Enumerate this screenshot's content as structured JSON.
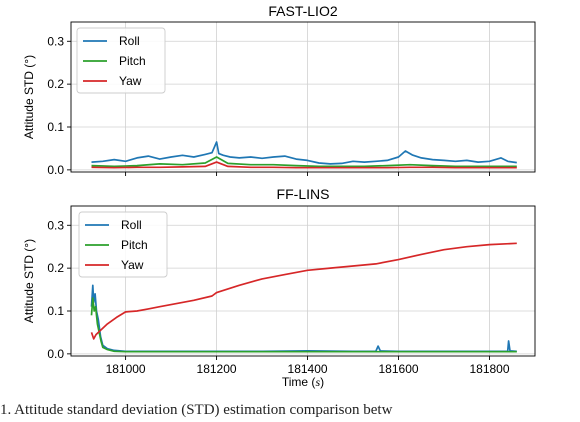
{
  "chart_data": [
    {
      "type": "line",
      "title": "FAST-LIO2",
      "ylabel": "Attitude STD (°)",
      "xlabel": "",
      "xlim": [
        180880,
        181900
      ],
      "ylim": [
        -0.005,
        0.345
      ],
      "yticks": [
        "0.0",
        "0.1",
        "0.2",
        "0.3"
      ],
      "xticks": [],
      "grid": true,
      "legend": "top-left",
      "series": [
        {
          "name": "Roll",
          "color": "#1f77b4",
          "x": [
            180925,
            180950,
            180975,
            181000,
            181025,
            181050,
            181075,
            181100,
            181125,
            181150,
            181175,
            181190,
            181200,
            181205,
            181215,
            181230,
            181250,
            181275,
            181300,
            181325,
            181350,
            181375,
            181400,
            181425,
            181450,
            181475,
            181500,
            181525,
            181550,
            181575,
            181600,
            181615,
            181630,
            181650,
            181675,
            181700,
            181725,
            181750,
            181775,
            181800,
            181825,
            181840,
            181860
          ],
          "y": [
            0.018,
            0.02,
            0.024,
            0.02,
            0.028,
            0.032,
            0.025,
            0.03,
            0.034,
            0.03,
            0.036,
            0.04,
            0.065,
            0.038,
            0.034,
            0.03,
            0.028,
            0.03,
            0.027,
            0.03,
            0.032,
            0.025,
            0.022,
            0.016,
            0.014,
            0.015,
            0.02,
            0.018,
            0.02,
            0.022,
            0.03,
            0.044,
            0.035,
            0.028,
            0.024,
            0.022,
            0.02,
            0.022,
            0.018,
            0.02,
            0.028,
            0.02,
            0.017
          ]
        },
        {
          "name": "Pitch",
          "color": "#2ca02c",
          "x": [
            180925,
            180975,
            181025,
            181075,
            181125,
            181175,
            181200,
            181225,
            181275,
            181325,
            181375,
            181425,
            181475,
            181525,
            181575,
            181625,
            181675,
            181725,
            181775,
            181825,
            181860
          ],
          "y": [
            0.01,
            0.008,
            0.01,
            0.014,
            0.012,
            0.016,
            0.03,
            0.015,
            0.012,
            0.012,
            0.01,
            0.008,
            0.008,
            0.008,
            0.01,
            0.012,
            0.01,
            0.008,
            0.008,
            0.008,
            0.008
          ]
        },
        {
          "name": "Yaw",
          "color": "#d62728",
          "x": [
            180925,
            180975,
            181025,
            181075,
            181125,
            181175,
            181200,
            181225,
            181275,
            181325,
            181375,
            181425,
            181475,
            181525,
            181575,
            181625,
            181675,
            181725,
            181775,
            181825,
            181860
          ],
          "y": [
            0.006,
            0.005,
            0.006,
            0.006,
            0.007,
            0.008,
            0.018,
            0.008,
            0.006,
            0.006,
            0.005,
            0.005,
            0.005,
            0.005,
            0.005,
            0.006,
            0.006,
            0.005,
            0.005,
            0.005,
            0.005
          ]
        }
      ]
    },
    {
      "type": "line",
      "title": "FF-LINS",
      "ylabel": "Attitude STD (°)",
      "xlabel": "Time (s)",
      "xlim": [
        180880,
        181900
      ],
      "ylim": [
        -0.005,
        0.345
      ],
      "yticks": [
        "0.0",
        "0.1",
        "0.2",
        "0.3"
      ],
      "xticks": [
        "181000",
        "181200",
        "181400",
        "181600",
        "181800"
      ],
      "grid": true,
      "legend": "top-center",
      "series": [
        {
          "name": "Roll",
          "color": "#1f77b4",
          "x": [
            180925,
            180928,
            180930,
            180933,
            180936,
            180940,
            180945,
            180950,
            180960,
            180975,
            181000,
            181100,
            181200,
            181300,
            181400,
            181500,
            181550,
            181555,
            181560,
            181600,
            181700,
            181800,
            181840,
            181842,
            181845,
            181860
          ],
          "y": [
            0.11,
            0.16,
            0.12,
            0.14,
            0.1,
            0.08,
            0.04,
            0.02,
            0.012,
            0.008,
            0.006,
            0.006,
            0.006,
            0.006,
            0.007,
            0.006,
            0.006,
            0.018,
            0.007,
            0.006,
            0.006,
            0.006,
            0.006,
            0.03,
            0.007,
            0.006
          ]
        },
        {
          "name": "Pitch",
          "color": "#2ca02c",
          "x": [
            180925,
            180928,
            180931,
            180934,
            180938,
            180942,
            180946,
            180950,
            180960,
            180975,
            181000,
            181100,
            181200,
            181300,
            181400,
            181500,
            181600,
            181700,
            181800,
            181860
          ],
          "y": [
            0.09,
            0.13,
            0.1,
            0.11,
            0.07,
            0.05,
            0.03,
            0.015,
            0.01,
            0.006,
            0.005,
            0.005,
            0.005,
            0.005,
            0.005,
            0.005,
            0.005,
            0.005,
            0.005,
            0.005
          ]
        },
        {
          "name": "Yaw",
          "color": "#d62728",
          "x": [
            180925,
            180930,
            180935,
            180945,
            180960,
            180980,
            181000,
            181025,
            181050,
            181075,
            181100,
            181150,
            181190,
            181200,
            181250,
            181300,
            181350,
            181400,
            181450,
            181500,
            181550,
            181600,
            181650,
            181700,
            181750,
            181800,
            181860
          ],
          "y": [
            0.05,
            0.035,
            0.045,
            0.055,
            0.07,
            0.085,
            0.098,
            0.1,
            0.105,
            0.11,
            0.115,
            0.125,
            0.135,
            0.143,
            0.16,
            0.175,
            0.185,
            0.195,
            0.2,
            0.205,
            0.21,
            0.22,
            0.232,
            0.243,
            0.25,
            0.255,
            0.258
          ]
        }
      ]
    }
  ],
  "caption": "1.  Attitude standard deviation (STD) estimation comparison betw"
}
